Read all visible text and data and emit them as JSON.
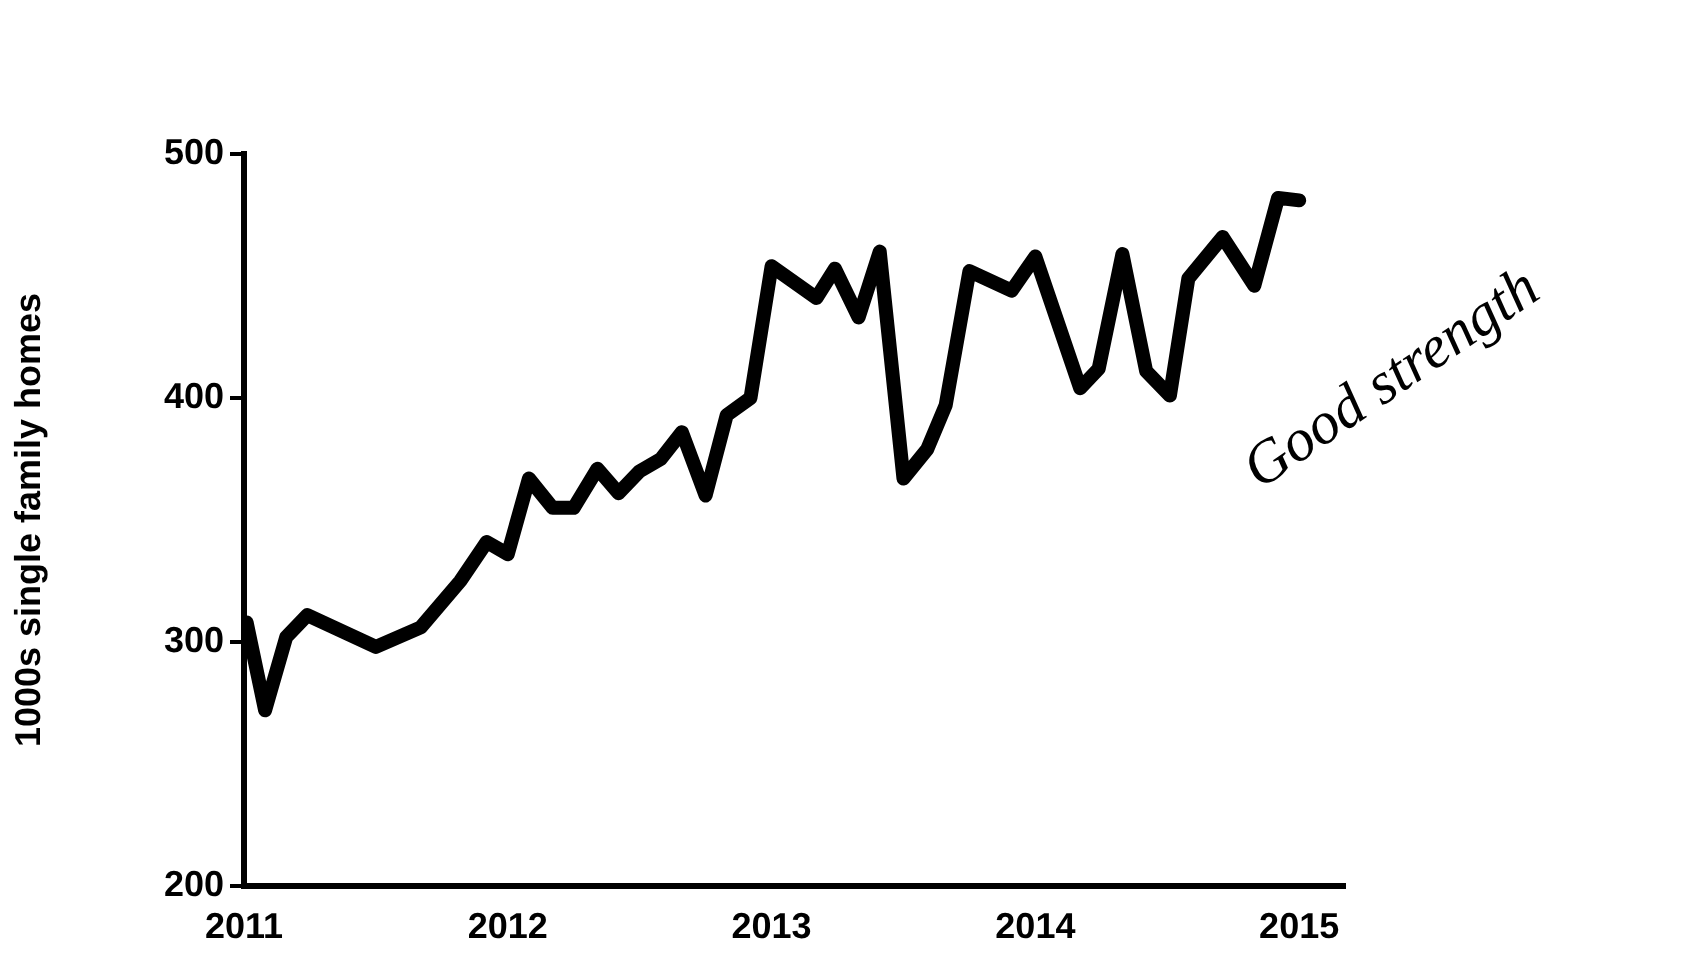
{
  "chart_data": {
    "type": "line",
    "ylabel": "1000s single family homes",
    "color": "#000000",
    "marker": "none",
    "x": [
      2011.01,
      2011.08,
      2011.16,
      2011.24,
      2011.5,
      2011.67,
      2011.82,
      2011.92,
      2012.0,
      2012.08,
      2012.17,
      2012.25,
      2012.34,
      2012.42,
      2012.5,
      2012.58,
      2012.66,
      2012.75,
      2012.83,
      2012.92,
      2013.0,
      2013.17,
      2013.24,
      2013.33,
      2013.41,
      2013.5,
      2013.59,
      2013.66,
      2013.75,
      2013.91,
      2014.0,
      2014.17,
      2014.24,
      2014.33,
      2014.42,
      2014.51,
      2014.58,
      2014.71,
      2014.83,
      2014.92,
      2015.0
    ],
    "values": [
      308,
      272,
      302,
      311,
      298,
      306,
      325,
      341,
      336,
      367,
      355,
      355,
      371,
      361,
      370,
      375,
      386,
      360,
      393,
      400,
      454,
      441,
      453,
      433,
      460,
      367,
      379,
      397,
      452,
      444,
      458,
      404,
      412,
      459,
      411,
      401,
      449,
      466,
      446,
      482,
      481
    ],
    "xlim": [
      2011,
      2015.17
    ],
    "xticks": [
      2011,
      2012,
      2013,
      2014,
      2015
    ],
    "ylim": [
      200,
      500
    ],
    "yticks": [
      200,
      300,
      400,
      500
    ],
    "annotations": [
      "Good strength"
    ]
  }
}
